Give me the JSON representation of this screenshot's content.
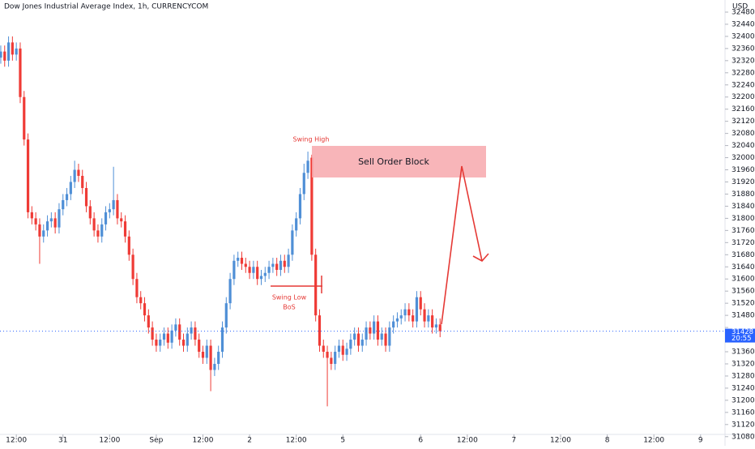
{
  "chart_data": {
    "type": "candlestick",
    "title": "Dow Jones Industrial Average Index, 1h, CURRENCYCOM",
    "currency": "USD",
    "up_color": "#4f8fd6",
    "down_color": "#ef3b36",
    "open": [
      32330,
      32350,
      32320,
      32380,
      32340,
      32360,
      32200,
      32060,
      31820,
      31800,
      31780,
      31740,
      31760,
      31790,
      31800,
      31770,
      31830,
      31860,
      31880,
      31920,
      31960,
      31940,
      31900,
      31840,
      31800,
      31760,
      31740,
      31780,
      31820,
      31830,
      31860,
      31800,
      31790,
      31740,
      31680,
      31600,
      31540,
      31520,
      31480,
      31440,
      31400,
      31380,
      31400,
      31420,
      31390,
      31430,
      31450,
      31400,
      31380,
      31420,
      31440,
      31400,
      31360,
      31340,
      31380,
      31300,
      31320,
      31360,
      31440,
      31520,
      31600,
      31660,
      31670,
      31650,
      31640,
      31620,
      31640,
      31600,
      31610,
      31620,
      31640,
      31650,
      31630,
      31660,
      31640,
      31680,
      31760,
      31800,
      31880,
      31950,
      32000,
      31680,
      31480,
      31380,
      31360,
      31340,
      31320,
      31360,
      31380,
      31350,
      31370,
      31400,
      31420,
      31380,
      31400,
      31440,
      31420,
      31460,
      31400,
      31420,
      31380,
      31440,
      31460,
      31470,
      31480,
      31500,
      31480,
      31460,
      31540,
      31500,
      31460,
      31480,
      31440,
      31450
    ],
    "high": [
      32370,
      32370,
      32400,
      32400,
      32380,
      32380,
      32220,
      32080,
      31840,
      31820,
      31800,
      31780,
      31810,
      31820,
      31820,
      31850,
      31880,
      31900,
      31940,
      31990,
      31980,
      31960,
      31920,
      31860,
      31820,
      31780,
      31800,
      31840,
      31850,
      31970,
      31880,
      31820,
      31810,
      31760,
      31700,
      31620,
      31560,
      31540,
      31500,
      31460,
      31420,
      31420,
      31440,
      31440,
      31450,
      31470,
      31470,
      31420,
      31440,
      31460,
      31460,
      31420,
      31380,
      31400,
      31400,
      31340,
      31380,
      31460,
      31540,
      31620,
      31680,
      31690,
      31690,
      31670,
      31660,
      31660,
      31660,
      31630,
      31640,
      31660,
      31670,
      31670,
      31680,
      31680,
      31700,
      31780,
      31820,
      31900,
      31980,
      32020,
      32010,
      31700,
      31500,
      31400,
      31380,
      31360,
      31380,
      31400,
      31400,
      31390,
      31420,
      31440,
      31440,
      31420,
      31460,
      31460,
      31480,
      31480,
      31440,
      31440,
      31460,
      31480,
      31490,
      31500,
      31520,
      31520,
      31500,
      31560,
      31560,
      31520,
      31500,
      31500,
      31470,
      31470
    ],
    "low": [
      32310,
      32300,
      32300,
      32320,
      32320,
      32180,
      32040,
      31800,
      31780,
      31760,
      31650,
      31720,
      31740,
      31770,
      31750,
      31750,
      31810,
      31840,
      31860,
      31900,
      31920,
      31880,
      31820,
      31780,
      31740,
      31720,
      31720,
      31760,
      31800,
      31810,
      31780,
      31770,
      31720,
      31660,
      31580,
      31520,
      31500,
      31460,
      31420,
      31380,
      31360,
      31360,
      31380,
      31370,
      31370,
      31410,
      31380,
      31360,
      31360,
      31400,
      31380,
      31340,
      31320,
      31320,
      31230,
      31280,
      31300,
      31340,
      31420,
      31500,
      31580,
      31640,
      31630,
      31620,
      31600,
      31600,
      31580,
      31580,
      31590,
      31600,
      31620,
      31610,
      31610,
      31620,
      31620,
      31660,
      31740,
      31780,
      31860,
      31930,
      31660,
      31460,
      31360,
      31340,
      31180,
      31300,
      31300,
      31340,
      31330,
      31330,
      31350,
      31380,
      31360,
      31360,
      31380,
      31400,
      31400,
      31380,
      31380,
      31360,
      31360,
      31420,
      31440,
      31450,
      31460,
      31460,
      31440,
      31440,
      31480,
      31440,
      31440,
      31420,
      31420,
      31408
    ],
    "close": [
      32350,
      32320,
      32380,
      32340,
      32360,
      32200,
      32060,
      31820,
      31800,
      31780,
      31740,
      31760,
      31790,
      31800,
      31770,
      31830,
      31860,
      31880,
      31920,
      31960,
      31940,
      31900,
      31840,
      31800,
      31760,
      31740,
      31780,
      31820,
      31830,
      31860,
      31800,
      31790,
      31740,
      31680,
      31600,
      31540,
      31520,
      31480,
      31440,
      31400,
      31380,
      31400,
      31420,
      31390,
      31430,
      31450,
      31400,
      31380,
      31420,
      31440,
      31400,
      31360,
      31340,
      31380,
      31300,
      31320,
      31360,
      31440,
      31520,
      31600,
      31660,
      31670,
      31650,
      31640,
      31620,
      31640,
      31600,
      31610,
      31620,
      31640,
      31650,
      31630,
      31660,
      31640,
      31680,
      31760,
      31800,
      31880,
      31950,
      31990,
      31680,
      31480,
      31380,
      31360,
      31340,
      31320,
      31360,
      31380,
      31350,
      31370,
      31400,
      31420,
      31380,
      31400,
      31440,
      31420,
      31460,
      31400,
      31420,
      31380,
      31440,
      31460,
      31470,
      31480,
      31500,
      31480,
      31460,
      31540,
      31500,
      31460,
      31480,
      31440,
      31450,
      31428
    ],
    "ylim": [
      31050,
      32520
    ],
    "yticks": [
      31080,
      31120,
      31160,
      31200,
      31240,
      31280,
      31320,
      31360,
      31400,
      31440,
      31480,
      31520,
      31560,
      31600,
      31640,
      31680,
      31720,
      31760,
      31800,
      31840,
      31880,
      31920,
      31960,
      32000,
      32040,
      32080,
      32120,
      32160,
      32200,
      32240,
      32280,
      32320,
      32360,
      32400,
      32440,
      32480
    ],
    "xlim": [
      -0.2,
      186.3
    ],
    "xticks": [
      {
        "value": 4,
        "label": "12:00"
      },
      {
        "value": 16,
        "label": "31"
      },
      {
        "value": 28,
        "label": "12:00"
      },
      {
        "value": 40,
        "label": "Sep"
      },
      {
        "value": 52,
        "label": "12:00"
      },
      {
        "value": 64,
        "label": "2"
      },
      {
        "value": 76,
        "label": "12:00"
      },
      {
        "value": 88,
        "label": "5"
      },
      {
        "value": 108,
        "label": "6"
      },
      {
        "value": 120,
        "label": "12:00"
      },
      {
        "value": 132,
        "label": "7"
      },
      {
        "value": 144,
        "label": "12:00"
      },
      {
        "value": 156,
        "label": "8"
      },
      {
        "value": 168,
        "label": "12:00"
      },
      {
        "value": 180,
        "label": "9"
      }
    ],
    "last_price": 31428,
    "countdown": "20:55",
    "annotations": {
      "swing_high": "Swing High",
      "order_block": "Sell Order Block",
      "swing_low": "Swing Low",
      "bos": "BoS"
    }
  }
}
